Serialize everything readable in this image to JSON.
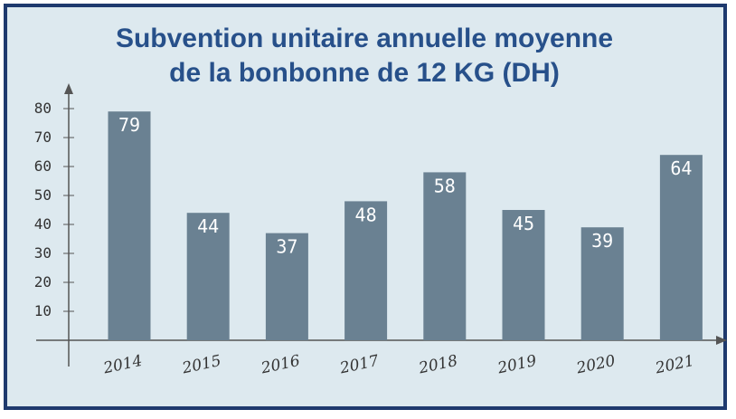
{
  "chart_data": {
    "type": "bar",
    "title_line1": "Subvention unitaire annuelle moyenne",
    "title_line2": "de la bonbonne de 12 KG (DH)",
    "categories": [
      "2014",
      "2015",
      "2016",
      "2017",
      "2018",
      "2019",
      "2020",
      "2021"
    ],
    "values": [
      79,
      44,
      37,
      48,
      58,
      45,
      39,
      64
    ],
    "y_ticks": [
      10,
      20,
      30,
      40,
      50,
      60,
      70,
      80
    ],
    "ylim": [
      0,
      80
    ],
    "grid": false,
    "colors": {
      "bar": "#6a8192",
      "background": "#dde9ef",
      "border": "#1f3a6e",
      "title": "#27508a",
      "axis": "#555555"
    }
  }
}
